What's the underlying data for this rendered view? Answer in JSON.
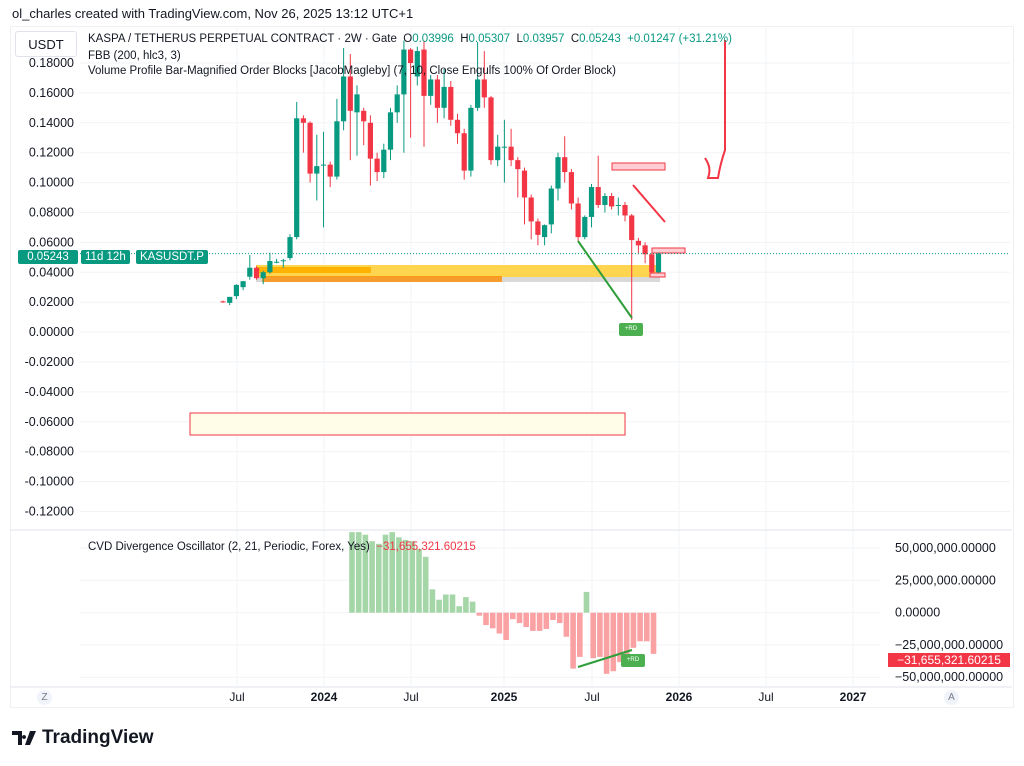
{
  "credit": "ol_charles created with TradingView.com, Nov 26, 2025 13:12 UTC+1",
  "currency": "USDT",
  "legend": {
    "symbol": "KASPA / TETHERUS PERPETUAL CONTRACT · 2W · Gate",
    "o_label": "O",
    "o": "0.03996",
    "h_label": "H",
    "h": "0.05307",
    "l_label": "L",
    "l": "0.03957",
    "c_label": "C",
    "c": "0.05243",
    "change": "+0.01247 (+31.21%)",
    "ind1": "FBB (200, hlc3, 3)",
    "ind2": "Volume Profile Bar-Magnified Order Blocks [JacobMagleby] (7, 10, Close Engulfs 100% Of Order Block)"
  },
  "price_label": {
    "price": "0.05243",
    "countdown": "11d 12h",
    "ticker": "KASUSDT.P"
  },
  "oscillator": {
    "title": "CVD Divergence Oscillator (2, 21, Periodic, Forex, Yes)",
    "value": "−31,655,321.60215",
    "badge": "−31,655,321.60215"
  },
  "rd_label": "+RD",
  "time_axis": {
    "z": "Z",
    "a": "A"
  },
  "logo": "TradingView",
  "colors": {
    "up": "#089981",
    "down": "#f23645",
    "osc_up": "#a5d6a7",
    "osc_down": "#faa1a4"
  },
  "chart_data": [
    {
      "type": "candlestick",
      "title": "KASPA / TETHERUS PERPETUAL CONTRACT · 2W · Gate",
      "ylim": [
        -0.13,
        0.2
      ],
      "yticks": [
        "0.18000",
        "0.16000",
        "0.14000",
        "0.12000",
        "0.10000",
        "0.08000",
        "0.06000",
        "0.04000",
        "0.02000",
        "0.00000",
        "-0.02000",
        "-0.04000",
        "-0.06000",
        "-0.08000",
        "-0.10000",
        "-0.12000"
      ],
      "xticks": [
        {
          "label": "Jul",
          "bold": false
        },
        {
          "label": "2024",
          "bold": true
        },
        {
          "label": "Jul",
          "bold": false
        },
        {
          "label": "2025",
          "bold": true
        },
        {
          "label": "Jul",
          "bold": false
        },
        {
          "label": "2026",
          "bold": true
        },
        {
          "label": "Jul",
          "bold": false
        },
        {
          "label": "2027",
          "bold": true
        }
      ],
      "ohlc": [
        [
          0.0205,
          0.021,
          0.0195,
          0.02
        ],
        [
          0.0195,
          0.0235,
          0.018,
          0.0235
        ],
        [
          0.024,
          0.032,
          0.022,
          0.0315
        ],
        [
          0.03,
          0.034,
          0.028,
          0.034
        ],
        [
          0.037,
          0.0515,
          0.035,
          0.043
        ],
        [
          0.043,
          0.044,
          0.035,
          0.036
        ],
        [
          0.036,
          0.041,
          0.032,
          0.04
        ],
        [
          0.04,
          0.053,
          0.039,
          0.0475
        ],
        [
          0.047,
          0.049,
          0.046,
          0.047
        ],
        [
          0.0475,
          0.049,
          0.043,
          0.048
        ],
        [
          0.0495,
          0.0655,
          0.048,
          0.0635
        ],
        [
          0.0635,
          0.154,
          0.062,
          0.143
        ],
        [
          0.143,
          0.145,
          0.12,
          0.14
        ],
        [
          0.14,
          0.141,
          0.1,
          0.106
        ],
        [
          0.106,
          0.132,
          0.088,
          0.111
        ],
        [
          0.112,
          0.134,
          0.07,
          0.112
        ],
        [
          0.112,
          0.114,
          0.097,
          0.104
        ],
        [
          0.104,
          0.156,
          0.102,
          0.141
        ],
        [
          0.141,
          0.19,
          0.135,
          0.171
        ],
        [
          0.171,
          0.186,
          0.115,
          0.148
        ],
        [
          0.147,
          0.165,
          0.118,
          0.159
        ],
        [
          0.148,
          0.15,
          0.125,
          0.141
        ],
        [
          0.14,
          0.145,
          0.098,
          0.116
        ],
        [
          0.116,
          0.12,
          0.101,
          0.107
        ],
        [
          0.107,
          0.126,
          0.103,
          0.122
        ],
        [
          0.122,
          0.15,
          0.115,
          0.147
        ],
        [
          0.147,
          0.165,
          0.14,
          0.159
        ],
        [
          0.159,
          0.195,
          0.12,
          0.189
        ],
        [
          0.189,
          0.19,
          0.13,
          0.18
        ],
        [
          0.171,
          0.191,
          0.165,
          0.188
        ],
        [
          0.189,
          0.195,
          0.124,
          0.158
        ],
        [
          0.158,
          0.172,
          0.152,
          0.169
        ],
        [
          0.169,
          0.172,
          0.14,
          0.15
        ],
        [
          0.15,
          0.176,
          0.143,
          0.164
        ],
        [
          0.164,
          0.168,
          0.138,
          0.142
        ],
        [
          0.142,
          0.146,
          0.126,
          0.133
        ],
        [
          0.133,
          0.136,
          0.102,
          0.108
        ],
        [
          0.108,
          0.152,
          0.104,
          0.15
        ],
        [
          0.15,
          0.194,
          0.148,
          0.169
        ],
        [
          0.169,
          0.188,
          0.15,
          0.157
        ],
        [
          0.157,
          0.158,
          0.112,
          0.115
        ],
        [
          0.115,
          0.132,
          0.111,
          0.124
        ],
        [
          0.124,
          0.142,
          0.1,
          0.124
        ],
        [
          0.124,
          0.136,
          0.111,
          0.115
        ],
        [
          0.115,
          0.117,
          0.09,
          0.109
        ],
        [
          0.108,
          0.11,
          0.072,
          0.09
        ],
        [
          0.09,
          0.092,
          0.062,
          0.074
        ],
        [
          0.074,
          0.076,
          0.058,
          0.065
        ],
        [
          0.0635,
          0.072,
          0.058,
          0.0715
        ],
        [
          0.072,
          0.098,
          0.066,
          0.096
        ],
        [
          0.096,
          0.12,
          0.088,
          0.117
        ],
        [
          0.117,
          0.131,
          0.1,
          0.107
        ],
        [
          0.107,
          0.109,
          0.082,
          0.086
        ],
        [
          0.086,
          0.09,
          0.061,
          0.0635
        ],
        [
          0.0635,
          0.078,
          0.062,
          0.077
        ],
        [
          0.077,
          0.099,
          0.07,
          0.097
        ],
        [
          0.097,
          0.118,
          0.083,
          0.085
        ],
        [
          0.085,
          0.093,
          0.08,
          0.091
        ],
        [
          0.091,
          0.093,
          0.082,
          0.084
        ],
        [
          0.085,
          0.09,
          0.078,
          0.085
        ],
        [
          0.085,
          0.087,
          0.074,
          0.078
        ],
        [
          0.078,
          0.079,
          0.008,
          0.0615
        ],
        [
          0.061,
          0.063,
          0.052,
          0.058
        ],
        [
          0.058,
          0.06,
          0.046,
          0.052
        ],
        [
          0.052,
          0.053,
          0.039,
          0.04
        ],
        [
          0.03996,
          0.05307,
          0.03957,
          0.05243
        ]
      ]
    },
    {
      "type": "bar",
      "title": "CVD Divergence Oscillator (2, 21, Periodic, Forex, Yes)",
      "ylim": [
        -60000000,
        60000000
      ],
      "yticks": [
        "50,000,000.00000",
        "25,000,000.00000",
        "0.00000",
        "−25,000,000.00000",
        "−50,000,000.00000"
      ],
      "values_millions": [
        62,
        62,
        60,
        55,
        53,
        60,
        62,
        58,
        56,
        55,
        49,
        43,
        18,
        10,
        14,
        14,
        5,
        12,
        8.5,
        -2.3,
        -9.5,
        -12,
        -16,
        -21,
        -5,
        -8,
        -11,
        -14,
        -14,
        -12.5,
        -5.6,
        -8,
        -18.5,
        -43,
        -34,
        16,
        -35,
        -34,
        -47,
        -45,
        -38,
        -34,
        -27,
        -22,
        -22,
        -31.66
      ]
    }
  ]
}
